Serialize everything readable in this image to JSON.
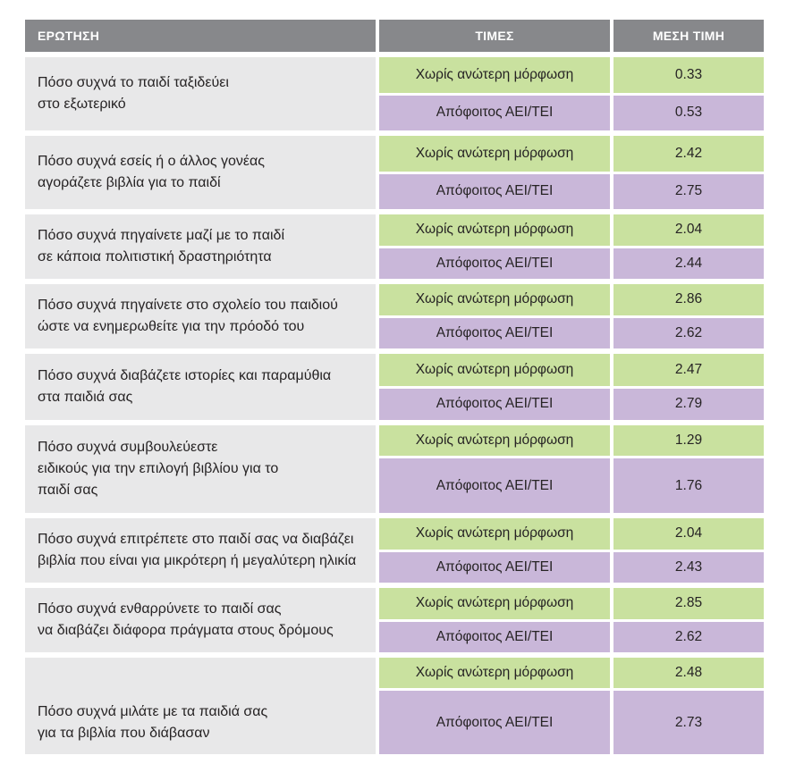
{
  "table": {
    "headers": {
      "question": "ΕΡΩΤΗΣΗ",
      "values": "ΤΙΜΕΣ",
      "mean": "ΜΕΣΗ ΤΙΜΗ"
    },
    "colors": {
      "header_bg": "#87888b",
      "header_text": "#ffffff",
      "question_bg": "#e8e8e9",
      "green": "#c9e19f",
      "purple": "#c9b7d9",
      "text": "#262324"
    },
    "groups": [
      {
        "question": "Πόσο συχνά το παιδί ταξιδεύει\nστο εξωτερικό",
        "rows": [
          {
            "label": "Χωρίς ανώτερη μόρφωση",
            "mean": "0.33"
          },
          {
            "label": "Απόφοιτος ΑΕΙ/ΤΕΙ",
            "mean": "0.53"
          }
        ]
      },
      {
        "question": "Πόσο συχνά εσείς ή ο άλλος γονέας\nαγοράζετε βιβλία για το παιδί",
        "rows": [
          {
            "label": "Χωρίς ανώτερη μόρφωση",
            "mean": "2.42"
          },
          {
            "label": "Απόφοιτος ΑΕΙ/ΤΕΙ",
            "mean": "2.75"
          }
        ]
      },
      {
        "question": "Πόσο συχνά πηγαίνετε μαζί με το παιδί\nσε κάποια πολιτιστική δραστηριότητα",
        "rows": [
          {
            "label": "Χωρίς ανώτερη μόρφωση",
            "mean": "2.04"
          },
          {
            "label": "Απόφοιτος ΑΕΙ/ΤΕΙ",
            "mean": "2.44"
          }
        ]
      },
      {
        "question": "Πόσο συχνά πηγαίνετε στο σχολείο του παιδιού\nώστε να ενημερωθείτε για την πρόοδό του",
        "rows": [
          {
            "label": "Χωρίς ανώτερη μόρφωση",
            "mean": "2.86"
          },
          {
            "label": "Απόφοιτος ΑΕΙ/ΤΕΙ",
            "mean": "2.62"
          }
        ]
      },
      {
        "question": "Πόσο συχνά διαβάζετε ιστορίες και παραμύθια\nστα παιδιά σας",
        "rows": [
          {
            "label": "Χωρίς ανώτερη μόρφωση",
            "mean": "2.47"
          },
          {
            "label": "Απόφοιτος ΑΕΙ/ΤΕΙ",
            "mean": "2.79"
          }
        ]
      },
      {
        "question": "Πόσο συχνά συμβουλεύεστε\nειδικούς για την επιλογή βιβλίου για το\nπαιδί σας",
        "rows": [
          {
            "label": "Χωρίς ανώτερη μόρφωση",
            "mean": "1.29"
          },
          {
            "label": "Απόφοιτος ΑΕΙ/ΤΕΙ",
            "mean": "1.76"
          }
        ]
      },
      {
        "question": "Πόσο συχνά επιτρέπετε στο παιδί σας να διαβάζει\nβιβλία που είναι για μικρότερη ή μεγαλύτερη ηλικία",
        "rows": [
          {
            "label": "Χωρίς ανώτερη μόρφωση",
            "mean": "2.04"
          },
          {
            "label": "Απόφοιτος ΑΕΙ/ΤΕΙ",
            "mean": "2.43"
          }
        ]
      },
      {
        "question": "Πόσο συχνά ενθαρρύνετε το παιδί σας\nνα διαβάζει διάφορα πράγματα στους δρόμους",
        "rows": [
          {
            "label": "Χωρίς ανώτερη μόρφωση",
            "mean": "2.85"
          },
          {
            "label": "Απόφοιτος ΑΕΙ/ΤΕΙ",
            "mean": "2.62"
          }
        ]
      },
      {
        "question": "Πόσο συχνά μιλάτε με τα παιδιά σας\nγια τα βιβλία που διάβασαν",
        "rows": [
          {
            "label": "Χωρίς ανώτερη μόρφωση",
            "mean": "2.48"
          },
          {
            "label": "Απόφοιτος ΑΕΙ/ΤΕΙ",
            "mean": "2.73"
          }
        ]
      }
    ]
  }
}
